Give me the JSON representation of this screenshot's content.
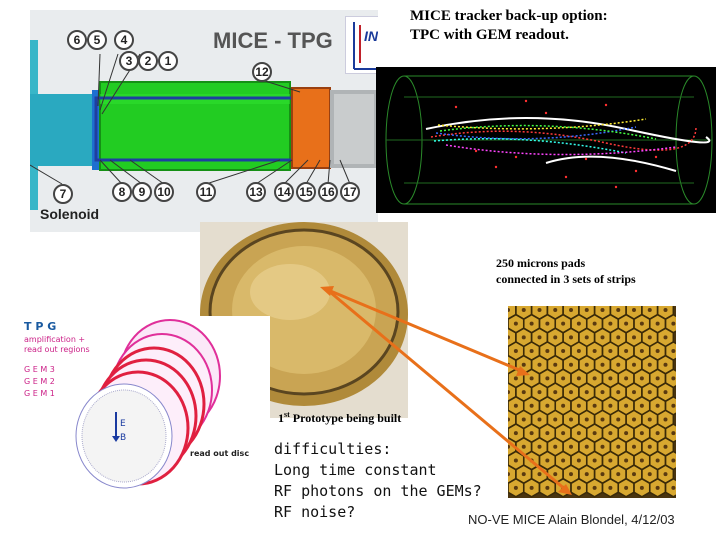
{
  "header": {
    "line1": "MICE tracker back-up option:",
    "line2": "TPC with GEM readout."
  },
  "tpg_schematic": {
    "title": "MICE - TPG",
    "logo_text": "INFN",
    "solenoid_label": "Solenoid",
    "callouts_top": [
      "6",
      "5",
      "4",
      "3",
      "2",
      "1",
      "12"
    ],
    "callouts_bottom": [
      "7",
      "8",
      "9",
      "10",
      "11",
      "13",
      "14",
      "15",
      "16",
      "17"
    ],
    "colors": {
      "green": "#22cc22",
      "blue": "#1e6fd0",
      "orange": "#e8701a",
      "cyan": "#38b6c8"
    }
  },
  "pads": {
    "caption_line1": "250 microns pads",
    "caption_line2": "connected in 3 sets of strips"
  },
  "prototype": {
    "caption_prefix": "1",
    "caption_sup": "st",
    "caption_rest": " Prototype being built"
  },
  "gem_diagram": {
    "title": "T P G",
    "subtitle_line1": "amplification +",
    "subtitle_line2": "read out regions",
    "gem_labels": [
      "G E M 3",
      "G E M 2",
      "G E M 1"
    ],
    "readout_label": "read out disc"
  },
  "difficulties": {
    "heading": "difficulties:",
    "items": [
      "Long time constant",
      "RF photons on the GEMs?",
      "RF noise?"
    ]
  },
  "footer": "NO-VE  MICE  Alain Blondel, 4/12/03"
}
